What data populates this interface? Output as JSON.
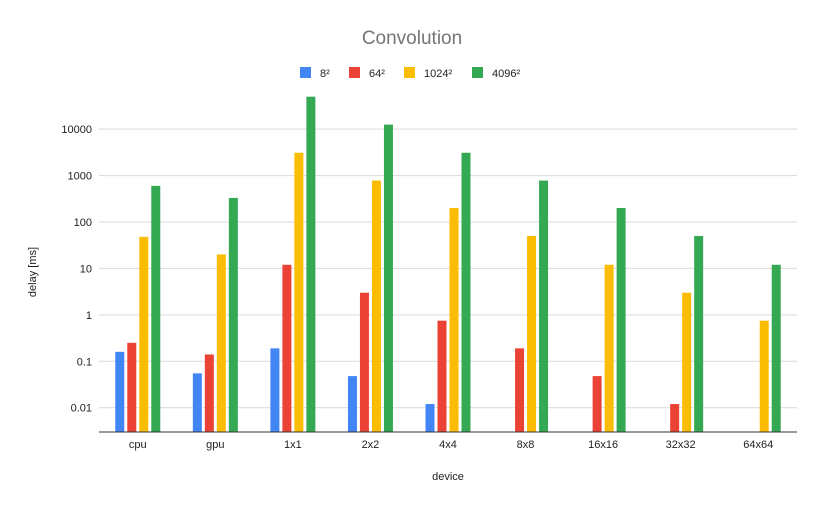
{
  "chart_data": {
    "type": "bar",
    "title": "Convolution",
    "xlabel": "device",
    "ylabel": "delay [ms]",
    "yscale": "log",
    "ylim": [
      0.003,
      60000
    ],
    "yticks": [
      0.01,
      0.1,
      1,
      10,
      100,
      1000,
      10000
    ],
    "ytick_labels": [
      "0.01",
      "0.1",
      "1",
      "10",
      "100",
      "1000",
      "10000"
    ],
    "grid": true,
    "legend": "top-center",
    "categories": [
      "cpu",
      "gpu",
      "1x1",
      "2x2",
      "4x4",
      "8x8",
      "16x16",
      "32x32",
      "64x64"
    ],
    "series": [
      {
        "name": "8²",
        "color": "#4285f4",
        "values": [
          0.16,
          0.055,
          0.19,
          0.048,
          0.012,
          null,
          null,
          null,
          null
        ]
      },
      {
        "name": "64²",
        "color": "#ea4335",
        "values": [
          0.25,
          0.14,
          12,
          3,
          0.75,
          0.19,
          0.048,
          0.012,
          null
        ]
      },
      {
        "name": "1024²",
        "color": "#fbbc04",
        "values": [
          48,
          20,
          3100,
          780,
          200,
          50,
          12,
          3,
          0.75
        ]
      },
      {
        "name": "4096²",
        "color": "#34a853",
        "values": [
          600,
          330,
          50000,
          12500,
          3100,
          780,
          200,
          50,
          12
        ]
      }
    ]
  }
}
